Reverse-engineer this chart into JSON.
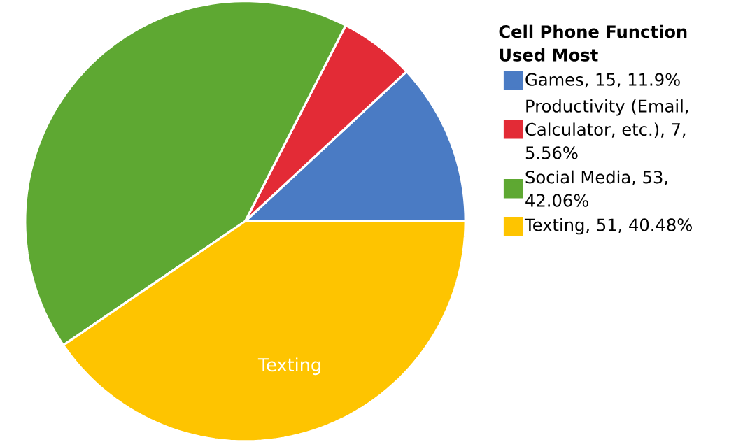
{
  "chart_data": {
    "type": "pie",
    "legend_title": "Cell Phone Function Used Most",
    "legend": "right",
    "categories": [
      "Games, 15, 11.9%",
      "Productivity (Email, Calculator, etc.), 7, 5.56%",
      "Social Media, 53, 42.06%",
      "Texting, 51, 40.48%"
    ],
    "values": [
      15,
      7,
      53,
      51
    ],
    "colors": [
      "#4a7bc4",
      "#e32b36",
      "#5ea832",
      "#fec400"
    ],
    "annotations": [
      {
        "text": "Texting",
        "x": "Texting, 51, 40.48%"
      }
    ]
  }
}
